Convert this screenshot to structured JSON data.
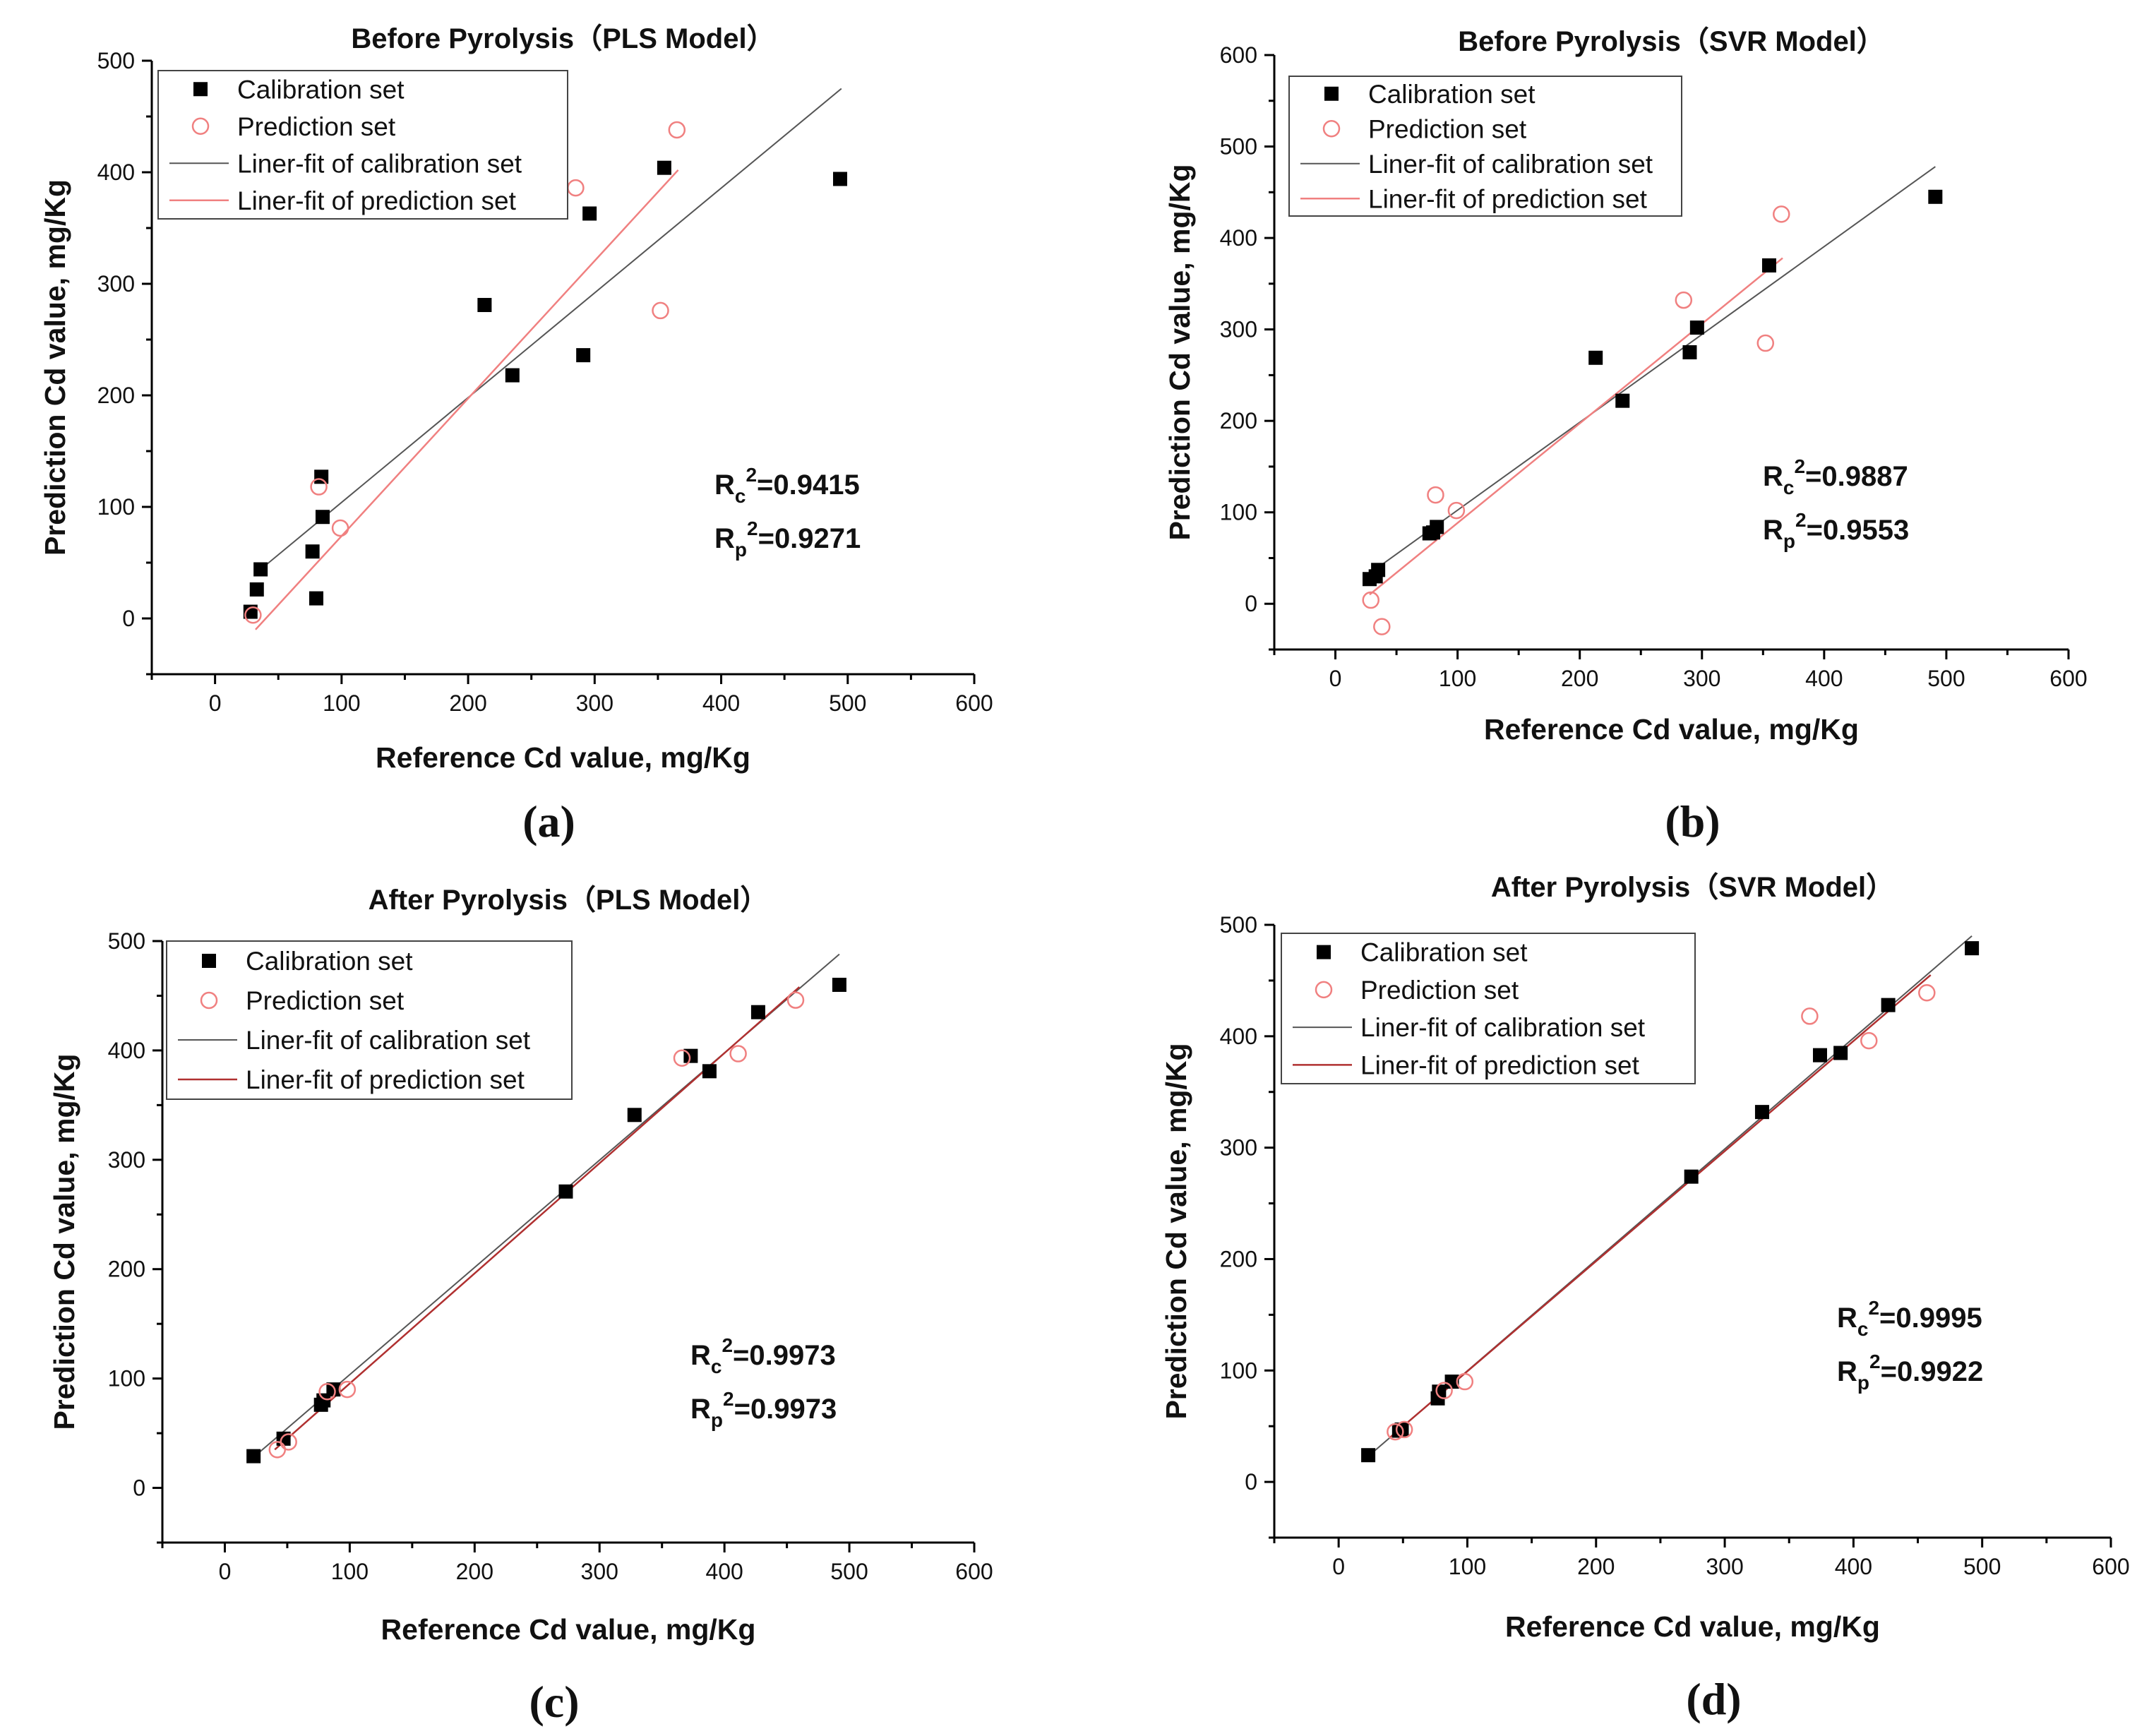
{
  "colors": {
    "calibration": "#000000",
    "prediction": "#f08080",
    "fit_calibration": "#555555",
    "fit_prediction": "#f08080",
    "fit_prediction_dark": "#b03030",
    "axis": "#000000"
  },
  "chart_data": [
    {
      "type": "scatter",
      "panel": "(a)",
      "title": "Before Pyrolysis（PLS Model）",
      "xlabel": "Reference Cd value, mg/Kg",
      "ylabel": "Prediction Cd value, mg/Kg",
      "xlim": [
        -50,
        600
      ],
      "ylim": [
        -50,
        500
      ],
      "xticks": [
        0,
        100,
        200,
        300,
        400,
        500,
        600
      ],
      "yticks": [
        0,
        100,
        200,
        300,
        400,
        500
      ],
      "legend": [
        "Calibration set",
        "Prediction set",
        "Liner-fit of calibration set",
        "Liner-fit of prediction set"
      ],
      "legend_position": "top-left",
      "stats": {
        "rc_prefix": "R",
        "rc_sub": "c",
        "rc_value": "=0.9415",
        "rp_prefix": "R",
        "rp_sub": "p",
        "rp_value": "=0.9271",
        "sup": "2"
      },
      "calibration": [
        [
          28,
          6
        ],
        [
          33,
          26
        ],
        [
          36,
          44
        ],
        [
          77,
          60
        ],
        [
          80,
          18
        ],
        [
          84,
          127
        ],
        [
          85,
          91
        ],
        [
          213,
          281
        ],
        [
          235,
          218
        ],
        [
          291,
          236
        ],
        [
          296,
          363
        ],
        [
          355,
          404
        ],
        [
          494,
          394
        ]
      ],
      "prediction": [
        [
          30,
          3
        ],
        [
          82,
          118
        ],
        [
          99,
          81
        ],
        [
          285,
          386
        ],
        [
          352,
          276
        ],
        [
          365,
          438
        ]
      ],
      "fit_calibration": [
        [
          35,
          43
        ],
        [
          495,
          475
        ]
      ],
      "fit_prediction": [
        [
          32,
          -10
        ],
        [
          366,
          402
        ]
      ],
      "fit_prediction_style": "light"
    },
    {
      "type": "scatter",
      "panel": "(b)",
      "title": "Before Pyrolysis（SVR Model）",
      "xlabel": "Reference Cd value, mg/Kg",
      "ylabel": "Prediction Cd value, mg/Kg",
      "xlim": [
        -50,
        600
      ],
      "ylim": [
        -50,
        600
      ],
      "xticks": [
        0,
        100,
        200,
        300,
        400,
        500,
        600
      ],
      "yticks": [
        0,
        100,
        200,
        300,
        400,
        500,
        600
      ],
      "legend": [
        "Calibration set",
        "Prediction set",
        "Liner-fit of calibration set",
        "Liner-fit of prediction set"
      ],
      "legend_position": "top-left",
      "stats": {
        "rc_prefix": "R",
        "rc_sub": "c",
        "rc_value": "=0.9887",
        "rp_prefix": "R",
        "rp_sub": "p",
        "rp_value": "=0.9553",
        "sup": "2"
      },
      "calibration": [
        [
          28,
          27
        ],
        [
          33,
          30
        ],
        [
          35,
          37
        ],
        [
          77,
          77
        ],
        [
          80,
          78
        ],
        [
          83,
          84
        ],
        [
          213,
          269
        ],
        [
          235,
          222
        ],
        [
          290,
          275
        ],
        [
          296,
          302
        ],
        [
          355,
          370
        ],
        [
          491,
          445
        ]
      ],
      "prediction": [
        [
          29,
          4
        ],
        [
          38,
          -25
        ],
        [
          82,
          119
        ],
        [
          99,
          102
        ],
        [
          285,
          332
        ],
        [
          352,
          285
        ],
        [
          365,
          426
        ]
      ],
      "fit_calibration": [
        [
          33,
          38
        ],
        [
          491,
          478
        ]
      ],
      "fit_prediction": [
        [
          28,
          10
        ],
        [
          366,
          378
        ]
      ],
      "fit_prediction_style": "light"
    },
    {
      "type": "scatter",
      "panel": "(c)",
      "title": "After Pyrolysis（PLS Model）",
      "xlabel": "Reference Cd value, mg/Kg",
      "ylabel": "Prediction Cd value, mg/Kg",
      "xlim": [
        -50,
        600
      ],
      "ylim": [
        -50,
        500
      ],
      "xticks": [
        0,
        100,
        200,
        300,
        400,
        500,
        600
      ],
      "yticks": [
        0,
        100,
        200,
        300,
        400,
        500
      ],
      "legend": [
        "Calibration set",
        "Prediction set",
        "Liner-fit of calibration set",
        "Liner-fit of prediction set"
      ],
      "legend_position": "top-left",
      "stats": {
        "rc_prefix": "R",
        "rc_sub": "c",
        "rc_value": "=0.9973",
        "rp_prefix": "R",
        "rp_sub": "p",
        "rp_value": "=0.9973",
        "sup": "2"
      },
      "calibration": [
        [
          23,
          29
        ],
        [
          47,
          45
        ],
        [
          77,
          76
        ],
        [
          79,
          80
        ],
        [
          87,
          90
        ],
        [
          273,
          271
        ],
        [
          328,
          341
        ],
        [
          373,
          395
        ],
        [
          388,
          381
        ],
        [
          427,
          435
        ],
        [
          492,
          460
        ]
      ],
      "prediction": [
        [
          42,
          35
        ],
        [
          51,
          42
        ],
        [
          82,
          88
        ],
        [
          98,
          90
        ],
        [
          366,
          393
        ],
        [
          411,
          397
        ],
        [
          457,
          446
        ]
      ],
      "fit_calibration": [
        [
          23,
          28
        ],
        [
          492,
          488
        ]
      ],
      "fit_prediction": [
        [
          40,
          35
        ],
        [
          460,
          458
        ]
      ],
      "fit_prediction_style": "dark"
    },
    {
      "type": "scatter",
      "panel": "(d)",
      "title": "After Pyrolysis（SVR Model）",
      "xlabel": "Reference Cd value, mg/Kg",
      "ylabel": "Prediction Cd value, mg/Kg",
      "xlim": [
        -50,
        600
      ],
      "ylim": [
        -50,
        500
      ],
      "xticks": [
        0,
        100,
        200,
        300,
        400,
        500,
        600
      ],
      "yticks": [
        0,
        100,
        200,
        300,
        400,
        500
      ],
      "legend": [
        "Calibration set",
        "Prediction set",
        "Liner-fit of calibration set",
        "Liner-fit of prediction set"
      ],
      "legend_position": "top-left",
      "stats": {
        "rc_prefix": "R",
        "rc_sub": "c",
        "rc_value": "=0.9995",
        "rp_prefix": "R",
        "rp_sub": "p",
        "rp_value": "=0.9922",
        "sup": "2"
      },
      "calibration": [
        [
          23,
          24
        ],
        [
          47,
          46
        ],
        [
          49,
          47
        ],
        [
          77,
          75
        ],
        [
          78,
          81
        ],
        [
          88,
          90
        ],
        [
          274,
          274
        ],
        [
          329,
          332
        ],
        [
          374,
          383
        ],
        [
          390,
          385
        ],
        [
          427,
          428
        ],
        [
          492,
          479
        ]
      ],
      "prediction": [
        [
          44,
          45
        ],
        [
          51,
          47
        ],
        [
          82,
          82
        ],
        [
          98,
          90
        ],
        [
          366,
          418
        ],
        [
          412,
          396
        ],
        [
          457,
          439
        ]
      ],
      "fit_calibration": [
        [
          23,
          23
        ],
        [
          492,
          490
        ]
      ],
      "fit_prediction": [
        [
          40,
          40
        ],
        [
          460,
          455
        ]
      ],
      "fit_prediction_style": "dark"
    }
  ]
}
